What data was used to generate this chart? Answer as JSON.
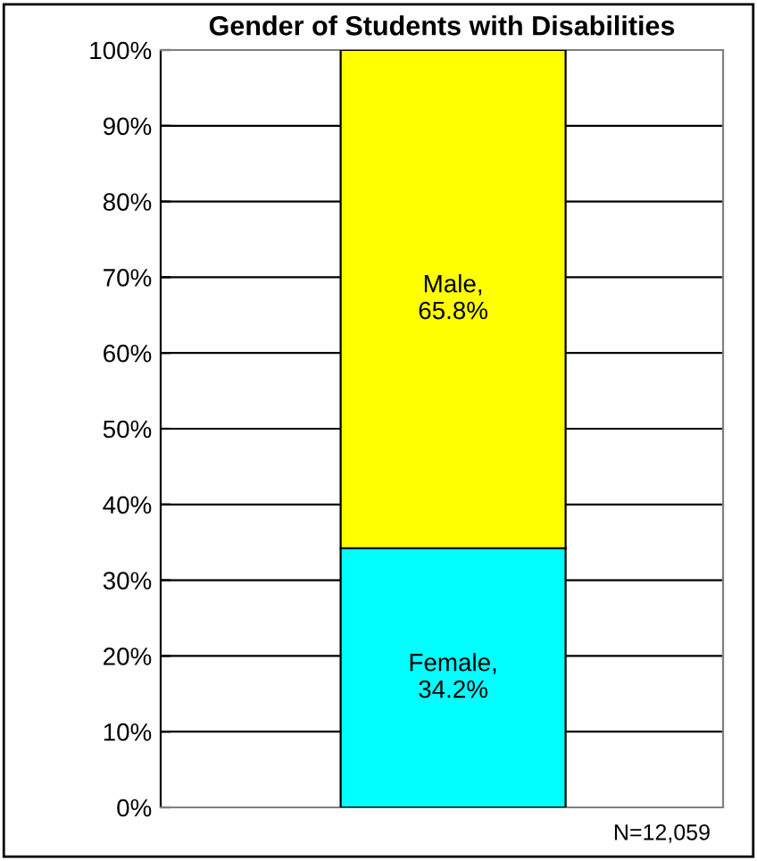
{
  "chart_data": {
    "type": "bar",
    "stacked": true,
    "title": "Gender of Students with Disabilities",
    "categories": [
      null
    ],
    "series": [
      {
        "color": "#00ffff",
        "values": [
          34.2
        ],
        "value_labels": [
          "Female,\n34.2%"
        ]
      },
      {
        "color": "#ffff00",
        "values": [
          65.8
        ],
        "value_labels": [
          "Male,\n65.8%"
        ]
      }
    ],
    "ylim": [
      0,
      100
    ],
    "yticks": [
      {
        "value": 0,
        "label": "0%"
      },
      {
        "value": 10,
        "label": "10%"
      },
      {
        "value": 20,
        "label": "20%"
      },
      {
        "value": 30,
        "label": "30%"
      },
      {
        "value": 40,
        "label": "40%"
      },
      {
        "value": 50,
        "label": "50%"
      },
      {
        "value": 60,
        "label": "60%"
      },
      {
        "value": 70,
        "label": "70%"
      },
      {
        "value": 80,
        "label": "80%"
      },
      {
        "value": 90,
        "label": "90%"
      },
      {
        "value": 100,
        "label": "100%"
      }
    ],
    "grid": "y",
    "legend": false,
    "annotations": [
      "N=12,059"
    ]
  }
}
